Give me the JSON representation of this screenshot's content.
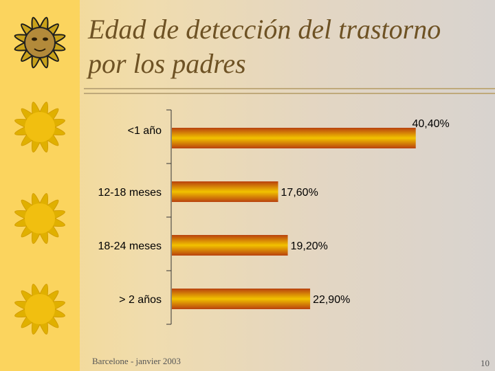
{
  "slide": {
    "title_line1": "Edad de detección del trastorno",
    "title_line2": "por los padres",
    "footer": "Barcelone - janvier 2003",
    "page_number": "10"
  },
  "decoration": {
    "icon": "sun-icon",
    "count": 4
  },
  "colors": {
    "bar_dark": "#b8410e",
    "bar_light": "#f2c200",
    "sidebar": "#fbd45e",
    "title": "#6e5224"
  },
  "chart_data": {
    "type": "bar",
    "orientation": "horizontal",
    "categories": [
      "<1 año",
      "12-18 meses",
      "18-24 meses",
      "> 2 años"
    ],
    "values": [
      40.4,
      17.6,
      19.2,
      22.9
    ],
    "value_labels": [
      "40,40%",
      "17,60%",
      "19,20%",
      "22,90%"
    ],
    "xlim": [
      0,
      41
    ],
    "grid": false,
    "legend": "none"
  }
}
